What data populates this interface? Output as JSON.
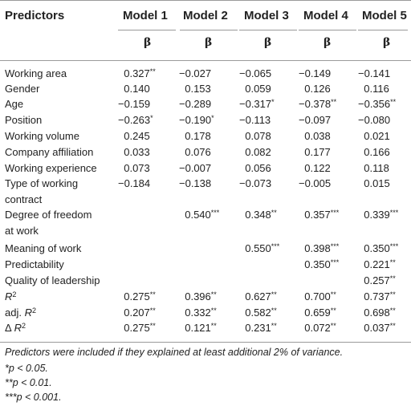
{
  "header": {
    "predictors": "Predictors",
    "models": [
      "Model 1",
      "Model 2",
      "Model 3",
      "Model 4",
      "Model 5"
    ],
    "beta": "β"
  },
  "rows": [
    {
      "label": "Working area",
      "values": [
        [
          "0.327",
          "**"
        ],
        [
          "−0.027",
          ""
        ],
        [
          "−0.065",
          ""
        ],
        [
          "−0.149",
          ""
        ],
        [
          "−0.141",
          ""
        ]
      ]
    },
    {
      "label": "Gender",
      "values": [
        [
          "0.140",
          ""
        ],
        [
          "0.153",
          ""
        ],
        [
          "0.059",
          ""
        ],
        [
          "0.126",
          ""
        ],
        [
          "0.116",
          ""
        ]
      ]
    },
    {
      "label": "Age",
      "values": [
        [
          "−0.159",
          ""
        ],
        [
          "−0.289",
          ""
        ],
        [
          "−0.317",
          "*"
        ],
        [
          "−0.378",
          "**"
        ],
        [
          "−0.356",
          "**"
        ]
      ]
    },
    {
      "label": "Position",
      "values": [
        [
          "−0.263",
          "*"
        ],
        [
          "−0.190",
          "*"
        ],
        [
          "−0.113",
          ""
        ],
        [
          "−0.097",
          ""
        ],
        [
          "−0.080",
          ""
        ]
      ]
    },
    {
      "label": "Working volume",
      "values": [
        [
          "0.245",
          ""
        ],
        [
          "0.178",
          ""
        ],
        [
          "0.078",
          ""
        ],
        [
          "0.038",
          ""
        ],
        [
          "0.021",
          ""
        ]
      ]
    },
    {
      "label": "Company affiliation",
      "values": [
        [
          "0.033",
          ""
        ],
        [
          "0.076",
          ""
        ],
        [
          "0.082",
          ""
        ],
        [
          "0.177",
          ""
        ],
        [
          "0.166",
          ""
        ]
      ]
    },
    {
      "label": "Working experience",
      "values": [
        [
          "0.073",
          ""
        ],
        [
          "−0.007",
          ""
        ],
        [
          "0.056",
          ""
        ],
        [
          "0.122",
          ""
        ],
        [
          "0.118",
          ""
        ]
      ]
    },
    {
      "label": "Type of working",
      "label2": "contract",
      "values": [
        [
          "−0.184",
          ""
        ],
        [
          "−0.138",
          ""
        ],
        [
          "−0.073",
          ""
        ],
        [
          "−0.005",
          ""
        ],
        [
          "0.015",
          ""
        ]
      ]
    },
    {
      "label": "Degree of freedom",
      "label2": "at work",
      "values": [
        [
          "",
          ""
        ],
        [
          "0.540",
          "***"
        ],
        [
          "0.348",
          "**"
        ],
        [
          "0.357",
          "***"
        ],
        [
          "0.339",
          "***"
        ]
      ]
    },
    {
      "label": "Meaning of work",
      "values": [
        [
          "",
          ""
        ],
        [
          "",
          ""
        ],
        [
          "0.550",
          "***"
        ],
        [
          "0.398",
          "***"
        ],
        [
          "0.350",
          "***"
        ]
      ]
    },
    {
      "label": "Predictability",
      "values": [
        [
          "",
          ""
        ],
        [
          "",
          ""
        ],
        [
          "",
          ""
        ],
        [
          "0.350",
          "***"
        ],
        [
          "0.221",
          "**"
        ]
      ]
    },
    {
      "label": "Quality of leadership",
      "values": [
        [
          "",
          ""
        ],
        [
          "",
          ""
        ],
        [
          "",
          ""
        ],
        [
          "",
          ""
        ],
        [
          "0.257",
          "**"
        ]
      ]
    },
    {
      "label": "R",
      "labelSup": "2",
      "labelPre": "",
      "values": [
        [
          "0.275",
          "**"
        ],
        [
          "0.396",
          "**"
        ],
        [
          "0.627",
          "**"
        ],
        [
          "0.700",
          "**"
        ],
        [
          "0.737",
          "**"
        ]
      ]
    },
    {
      "label": "R",
      "labelSup": "2",
      "labelPre": "adj. ",
      "values": [
        [
          "0.207",
          "**"
        ],
        [
          "0.332",
          "**"
        ],
        [
          "0.582",
          "**"
        ],
        [
          "0.659",
          "**"
        ],
        [
          "0.698",
          "**"
        ]
      ]
    },
    {
      "label": "R",
      "labelSup": "2",
      "labelPre": "Δ ",
      "values": [
        [
          "0.275",
          "**"
        ],
        [
          "0.121",
          "**"
        ],
        [
          "0.231",
          "**"
        ],
        [
          "0.072",
          "**"
        ],
        [
          "0.037",
          "**"
        ]
      ]
    }
  ],
  "notes": [
    "Predictors were included if they explained at least additional 2% of variance.",
    "*p < 0.05.",
    "**p < 0.01.",
    "***p < 0.001."
  ]
}
